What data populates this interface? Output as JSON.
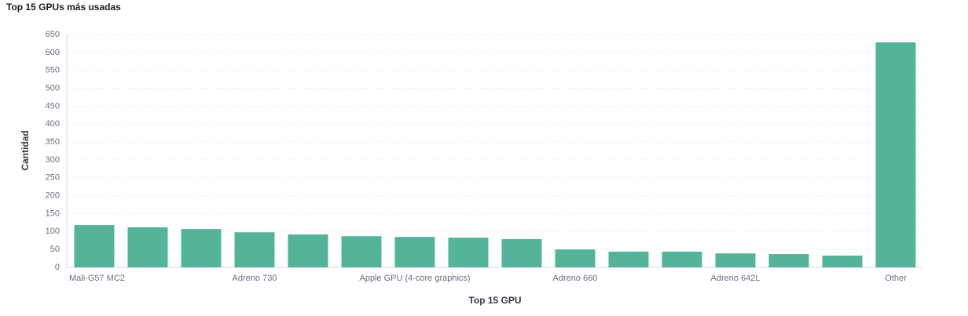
{
  "chart_data": {
    "type": "bar",
    "title": "Top 15 GPUs más usadas",
    "x_label": "Top 15 GPU",
    "y_label": "Cantidad",
    "categories": [
      "Mali-G57 MC2",
      null,
      null,
      "Adreno 730",
      null,
      null,
      "Apple GPU (4-core graphics)",
      null,
      null,
      "Adreno 660",
      null,
      null,
      "Adreno 642L",
      null,
      null,
      "Other"
    ],
    "values": [
      118,
      112,
      107,
      98,
      92,
      87,
      85,
      83,
      79,
      50,
      44,
      44,
      39,
      37,
      33,
      628
    ],
    "color": "#54b399",
    "ylim": [
      0,
      650
    ],
    "yticks": [
      0,
      50,
      100,
      150,
      200,
      250,
      300,
      350,
      400,
      450,
      500,
      550,
      600,
      650
    ],
    "grid": true
  }
}
